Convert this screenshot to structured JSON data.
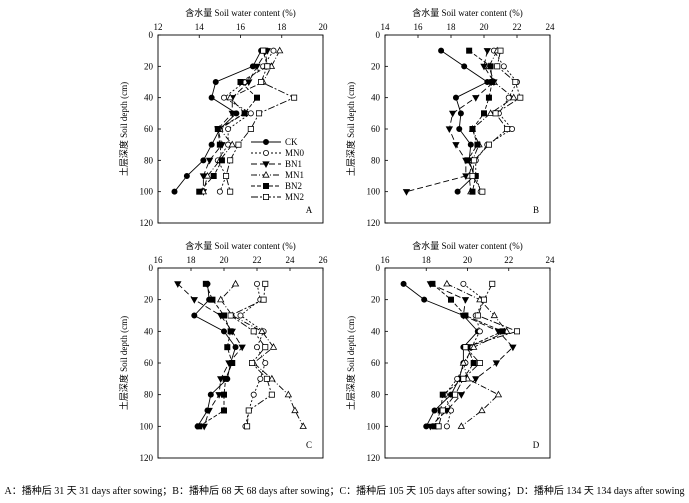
{
  "caption": "A：播种后 31 天  31 days after sowing；B：播种后 68 天 68 days after sowing；C：播种后 105 天 105 days after sowing；D：播种后 134 天 134 days after sowing",
  "series_styles": [
    {
      "name": "CK",
      "marker": "circle",
      "fill": "#000000",
      "dash": ""
    },
    {
      "name": "MN0",
      "marker": "circle",
      "fill": "#ffffff",
      "dash": "2,2"
    },
    {
      "name": "BN1",
      "marker": "tri-down",
      "fill": "#000000",
      "dash": "6,3"
    },
    {
      "name": "MN1",
      "marker": "tri-up",
      "fill": "#ffffff",
      "dash": "6,2,1,2"
    },
    {
      "name": "BN2",
      "marker": "square",
      "fill": "#000000",
      "dash": "4,2"
    },
    {
      "name": "MN2",
      "marker": "square",
      "fill": "#ffffff",
      "dash": "7,2,2,2"
    }
  ],
  "chart_data": [
    {
      "type": "line",
      "panel_label": "A",
      "x_title": "含水量 Soil water content (%)",
      "y_title": "土层深度 Soil depth (cm)",
      "xlim": [
        12,
        20
      ],
      "xticks": [
        12,
        14,
        16,
        18,
        20
      ],
      "ylim": [
        0,
        120
      ],
      "yticks": [
        0,
        20,
        40,
        60,
        80,
        100,
        120
      ],
      "y_inverted": true,
      "x_axis_position": "top",
      "legend": "center-right",
      "depths": [
        10,
        20,
        30,
        40,
        50,
        60,
        70,
        80,
        90,
        100
      ],
      "series": [
        {
          "name": "CK",
          "values": [
            17.0,
            16.6,
            14.8,
            14.6,
            15.8,
            15.0,
            14.6,
            14.2,
            13.4,
            12.8
          ]
        },
        {
          "name": "MN0",
          "values": [
            17.6,
            17.1,
            16.2,
            15.2,
            16.5,
            15.4,
            15.4,
            14.9,
            15.3,
            15.0
          ]
        },
        {
          "name": "BN1",
          "values": [
            17.3,
            16.8,
            16.4,
            15.6,
            15.6,
            14.9,
            15.1,
            14.5,
            14.2,
            14.2
          ]
        },
        {
          "name": "MN1",
          "values": [
            17.9,
            17.5,
            17.1,
            15.5,
            16.2,
            15.0,
            15.6,
            15.0,
            14.4,
            14.2
          ]
        },
        {
          "name": "BN2",
          "values": [
            17.2,
            17.3,
            16.0,
            16.8,
            16.2,
            14.9,
            15.0,
            15.1,
            14.7,
            14.0
          ]
        },
        {
          "name": "MN2",
          "values": [
            17.1,
            17.3,
            17.0,
            18.6,
            16.9,
            16.5,
            15.9,
            15.5,
            15.3,
            15.5
          ]
        }
      ]
    },
    {
      "type": "line",
      "panel_label": "B",
      "x_title": "含水量 Soil water content (%)",
      "y_title": "土层深度 Soil depth (cm)",
      "xlim": [
        14,
        24
      ],
      "xticks": [
        14,
        16,
        18,
        20,
        22,
        24
      ],
      "ylim": [
        0,
        120
      ],
      "yticks": [
        0,
        20,
        40,
        60,
        80,
        100,
        120
      ],
      "y_inverted": true,
      "x_axis_position": "top",
      "depths": [
        10,
        20,
        30,
        40,
        50,
        60,
        70,
        80,
        90,
        100
      ],
      "series": [
        {
          "name": "CK",
          "values": [
            17.4,
            18.8,
            20.2,
            18.3,
            18.6,
            18.5,
            19.2,
            19.1,
            19.4,
            18.4
          ]
        },
        {
          "name": "MN0",
          "values": [
            20.6,
            21.2,
            22.0,
            21.5,
            20.9,
            21.7,
            20.2,
            19.5,
            19.5,
            19.8
          ]
        },
        {
          "name": "BN1",
          "values": [
            20.2,
            20.0,
            20.6,
            19.5,
            18.1,
            17.9,
            18.3,
            18.9,
            18.9,
            15.3
          ]
        },
        {
          "name": "MN1",
          "values": [
            20.8,
            20.3,
            20.6,
            21.8,
            20.4,
            19.3,
            19.7,
            19.3,
            19.1,
            19.2
          ]
        },
        {
          "name": "BN2",
          "values": [
            19.1,
            20.4,
            20.5,
            20.3,
            20.0,
            19.3,
            19.6,
            19.0,
            19.5,
            19.3
          ]
        },
        {
          "name": "MN2",
          "values": [
            21.0,
            20.8,
            21.9,
            22.2,
            20.7,
            21.4,
            20.3,
            19.4,
            19.3,
            19.9
          ]
        }
      ]
    },
    {
      "type": "line",
      "panel_label": "C",
      "x_title": "含水量 Soil water content (%)",
      "y_title": "土层深度 Soil depth (cm)",
      "xlim": [
        16,
        26
      ],
      "xticks": [
        16,
        18,
        20,
        22,
        24,
        26
      ],
      "ylim": [
        0,
        120
      ],
      "yticks": [
        0,
        20,
        40,
        60,
        80,
        100,
        120
      ],
      "y_inverted": true,
      "x_axis_position": "top",
      "depths": [
        10,
        20,
        30,
        40,
        50,
        60,
        70,
        80,
        90,
        100
      ],
      "series": [
        {
          "name": "CK",
          "values": [
            19.0,
            19.1,
            18.2,
            20.0,
            20.7,
            20.4,
            20.2,
            19.2,
            19.0,
            18.4
          ]
        },
        {
          "name": "MN0",
          "values": [
            22.0,
            22.2,
            21.0,
            22.4,
            22.0,
            22.5,
            22.2,
            21.8,
            21.5,
            21.3
          ]
        },
        {
          "name": "BN1",
          "values": [
            17.2,
            18.2,
            19.8,
            20.5,
            21.1,
            20.3,
            19.8,
            19.7,
            19.1,
            18.8
          ]
        },
        {
          "name": "MN1",
          "values": [
            20.7,
            19.8,
            20.5,
            22.3,
            23.0,
            21.8,
            22.9,
            23.9,
            24.3,
            24.8
          ]
        },
        {
          "name": "BN2",
          "values": [
            18.9,
            19.3,
            20.0,
            20.4,
            20.2,
            20.5,
            20.1,
            20.0,
            20.0,
            18.5
          ]
        },
        {
          "name": "MN2",
          "values": [
            22.5,
            22.4,
            20.4,
            21.8,
            22.5,
            21.7,
            22.6,
            22.9,
            21.5,
            21.4
          ]
        }
      ]
    },
    {
      "type": "line",
      "panel_label": "D",
      "x_title": "含水量 Soil water content (%)",
      "y_title": "土层深度 Soil depth (cm)",
      "xlim": [
        16,
        24
      ],
      "xticks": [
        16,
        18,
        20,
        22,
        24
      ],
      "ylim": [
        0,
        120
      ],
      "yticks": [
        0,
        20,
        40,
        60,
        80,
        100,
        120
      ],
      "y_inverted": true,
      "x_axis_position": "top",
      "depths": [
        10,
        20,
        30,
        40,
        50,
        60,
        70,
        80,
        90,
        100
      ],
      "series": [
        {
          "name": "CK",
          "values": [
            16.9,
            17.9,
            19.8,
            20.5,
            19.8,
            19.8,
            19.6,
            19.2,
            18.4,
            18.0
          ]
        },
        {
          "name": "MN0",
          "values": [
            19.8,
            20.8,
            20.4,
            20.6,
            20.2,
            19.9,
            19.5,
            18.9,
            19.2,
            19.0
          ]
        },
        {
          "name": "BN1",
          "values": [
            18.2,
            19.9,
            19.8,
            21.5,
            22.2,
            21.4,
            20.4,
            19.7,
            19.0,
            18.2
          ]
        },
        {
          "name": "MN1",
          "values": [
            19.0,
            20.6,
            21.3,
            21.9,
            20.3,
            19.8,
            20.0,
            21.5,
            20.7,
            19.7
          ]
        },
        {
          "name": "BN2",
          "values": [
            18.3,
            19.2,
            19.9,
            21.7,
            20.0,
            20.3,
            19.8,
            18.8,
            18.7,
            18.4
          ]
        },
        {
          "name": "MN2",
          "values": [
            21.2,
            20.8,
            20.5,
            22.4,
            19.9,
            20.6,
            19.8,
            19.4,
            18.8,
            18.6
          ]
        }
      ]
    }
  ]
}
